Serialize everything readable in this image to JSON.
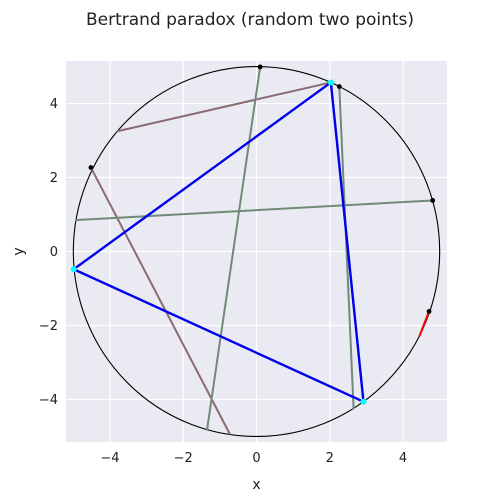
{
  "chart_data": {
    "type": "line",
    "title": "Bertrand paradox (random two points)",
    "xlabel": "x",
    "ylabel": "y",
    "xlim": [
      -5.2,
      5.2
    ],
    "ylim": [
      -5.15,
      5.15
    ],
    "xticks": [
      -4,
      -2,
      0,
      2,
      4
    ],
    "yticks": [
      -4,
      -2,
      0,
      2,
      4
    ],
    "xtick_labels": [
      "−4",
      "−2",
      "0",
      "2",
      "4"
    ],
    "ytick_labels": [
      "−4",
      "−2",
      "0",
      "2",
      "4"
    ],
    "grid": true,
    "circle": {
      "center": [
        0,
        0
      ],
      "radius": 5
    },
    "triangle": {
      "color": "#0000ee",
      "vertices": [
        [
          2.03,
          4.57
        ],
        [
          -4.99,
          -0.48
        ],
        [
          2.92,
          -4.06
        ]
      ]
    },
    "triangle_vertex_color": "#00ffff",
    "chords": [
      {
        "color": "#8b6b72",
        "points": [
          [
            -3.8,
            3.25
          ],
          [
            2.03,
            4.57
          ]
        ]
      },
      {
        "color": "#8b6b72",
        "points": [
          [
            -4.52,
            2.27
          ],
          [
            -0.73,
            -4.93
          ]
        ]
      },
      {
        "color": "#6f8a77",
        "points": [
          [
            0.1,
            4.99
          ],
          [
            -1.35,
            -4.82
          ]
        ]
      },
      {
        "color": "#6f8a77",
        "points": [
          [
            -4.92,
            0.85
          ],
          [
            4.81,
            1.38
          ]
        ]
      },
      {
        "color": "#6f8a77",
        "points": [
          [
            2.26,
            4.46
          ],
          [
            2.65,
            -4.24
          ]
        ]
      },
      {
        "color": "#6f8a77",
        "points": [
          [
            2.03,
            4.57
          ],
          [
            2.92,
            -4.06
          ]
        ]
      },
      {
        "color": "#ff0000",
        "points": [
          [
            4.71,
            -1.62
          ],
          [
            4.45,
            -2.28
          ]
        ]
      }
    ],
    "markers": [
      {
        "color": "#000000",
        "x": 0.1,
        "y": 4.99
      },
      {
        "color": "#000000",
        "x": 2.26,
        "y": 4.46
      },
      {
        "color": "#000000",
        "x": -4.52,
        "y": 2.27
      },
      {
        "color": "#000000",
        "x": 4.81,
        "y": 1.38
      },
      {
        "color": "#000000",
        "x": 4.71,
        "y": -1.62
      }
    ]
  }
}
